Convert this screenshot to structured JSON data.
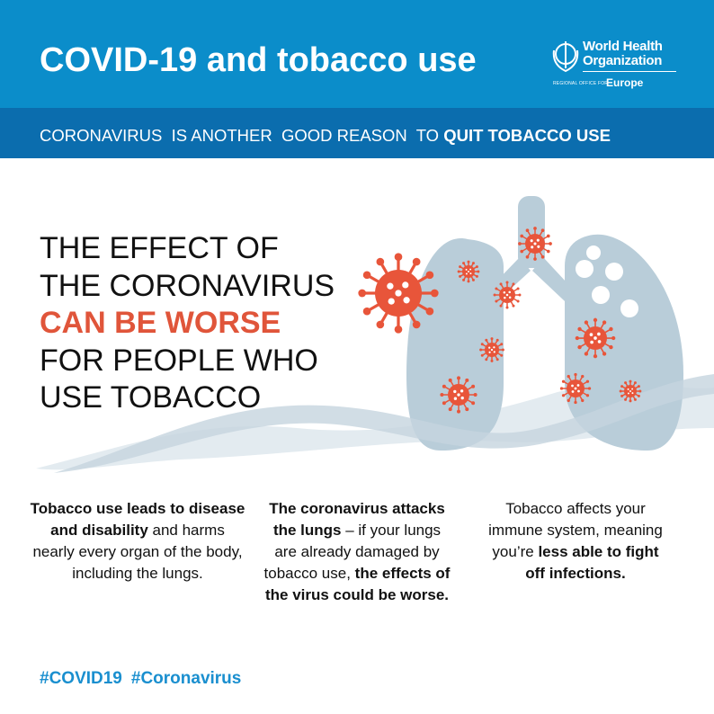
{
  "header": {
    "title": "COVID-19 and tobacco use",
    "logo": {
      "name_line1": "World Health",
      "name_line2": "Organization",
      "regional": "REGIONAL OFFICE FOR",
      "region": "Europe"
    }
  },
  "band": {
    "text_regular": "CORONAVIRUS  IS ANOTHER  GOOD REASON  TO ",
    "text_bold": "QUIT TOBACCO USE"
  },
  "headline": {
    "line1": "THE EFFECT OF",
    "line2": "THE CORONAVIRUS",
    "line3_highlight": "CAN BE WORSE",
    "line4": "FOR PEOPLE WHO",
    "line5": "USE TOBACCO"
  },
  "columns": [
    {
      "bold": "Tobacco use leads to disease and disability",
      "regular": " and harms nearly every organ of the body, including  the lungs."
    },
    {
      "bold1": "The coronavirus attacks the lungs",
      "regular": " – if your lungs  are already damaged by tobacco use, ",
      "bold2": "the effects of the virus could be worse."
    },
    {
      "regular": "Tobacco affects your immune  system, meaning  you’re ",
      "bold": "less able to fight off infections."
    }
  ],
  "hashtags": [
    "#COVID19",
    "#Coronavirus"
  ],
  "colors": {
    "header": "#0b8dca",
    "band": "#0b6dae",
    "highlight": "#e0553a",
    "virus": "#e8553a",
    "lungs": "#b9cdd9",
    "hashtag": "#1a8fcf"
  }
}
